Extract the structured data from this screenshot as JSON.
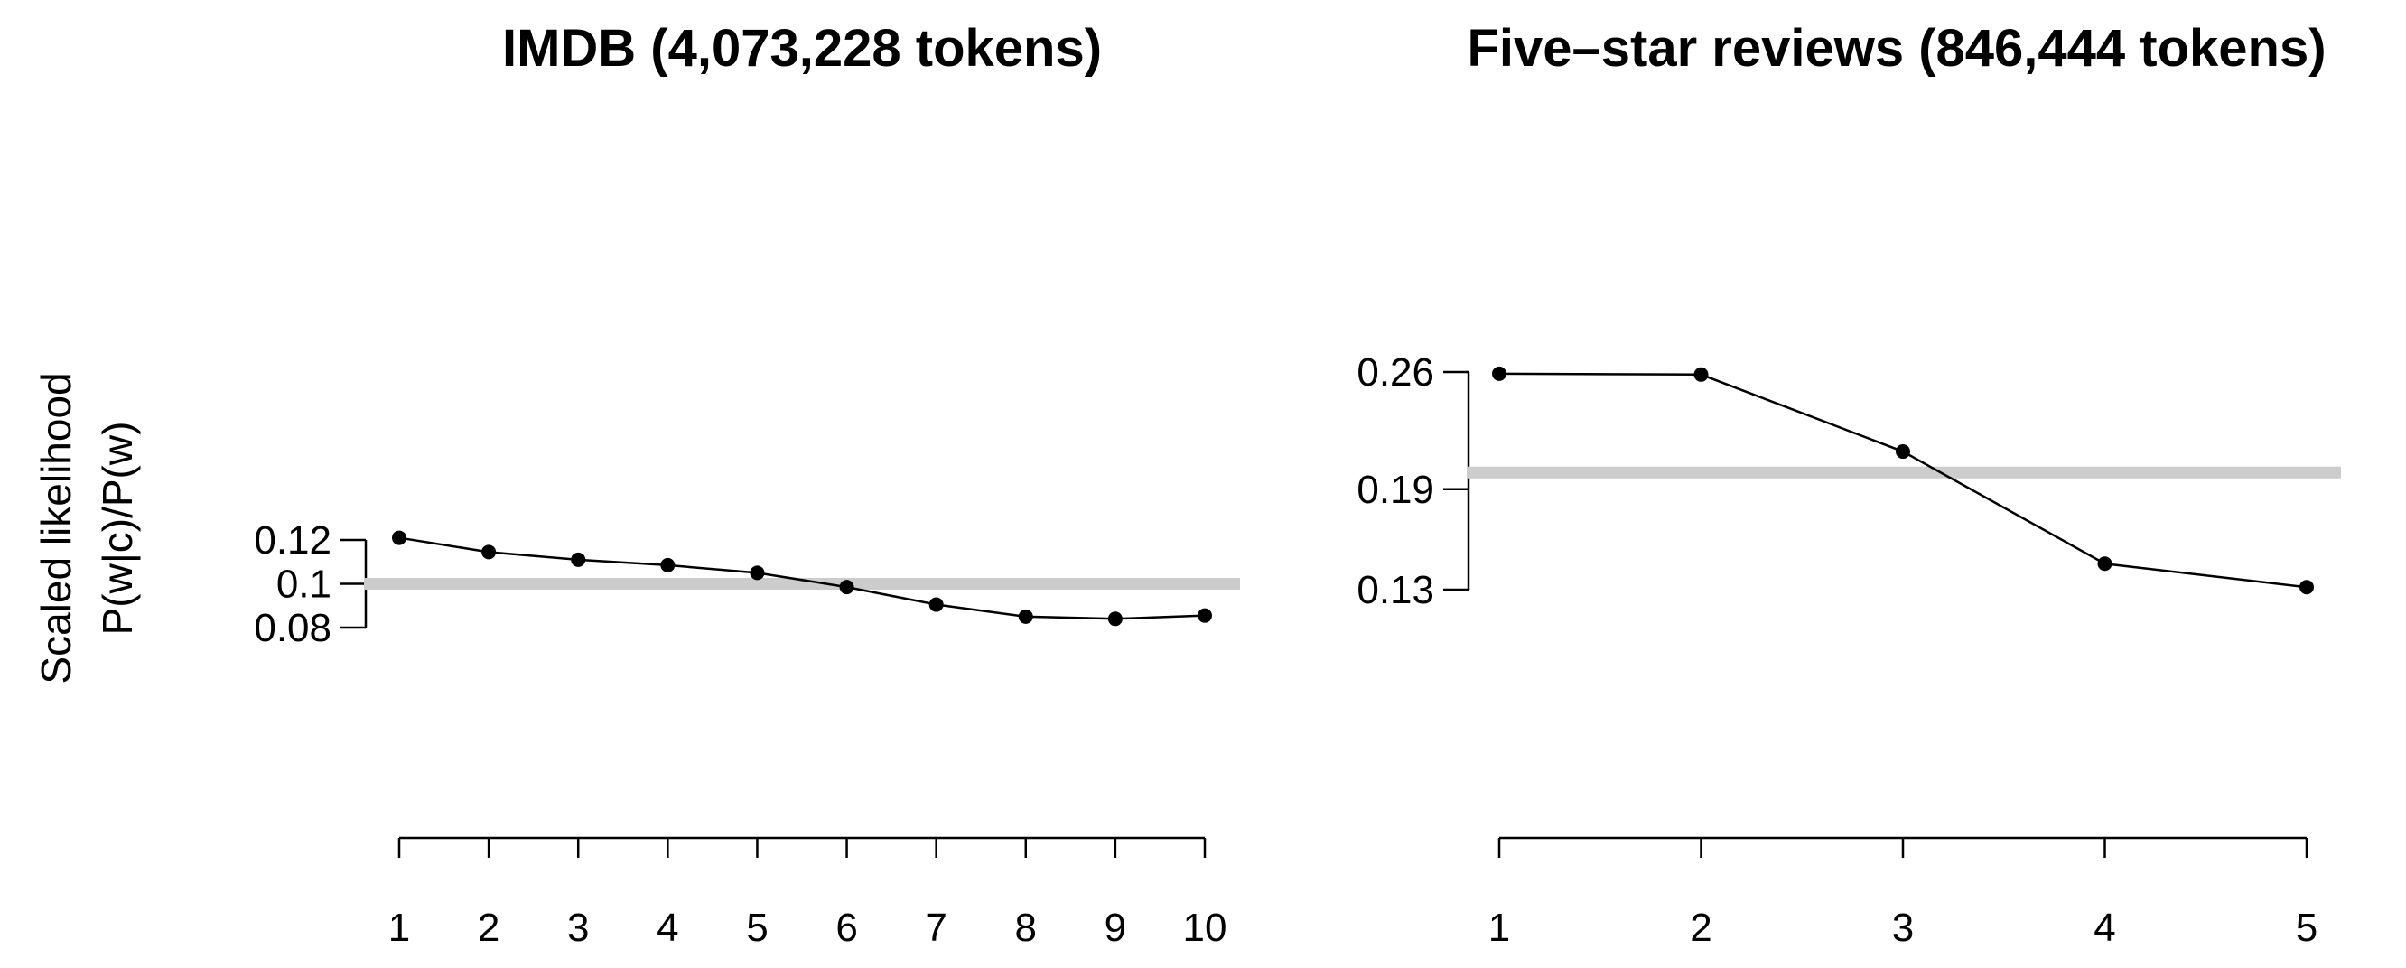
{
  "figure": {
    "ylabel": [
      "Scaled likelihood",
      "P(w|c)/P(w)"
    ],
    "baseline_color": "#cccccc",
    "line_color": "#000000"
  },
  "chart_data": [
    {
      "type": "line",
      "title": "IMDB (4,073,228 tokens)",
      "xlabel": "",
      "ylabel": "Scaled likelihood P(w|c)/P(w)",
      "x": [
        1,
        2,
        3,
        4,
        5,
        6,
        7,
        8,
        9,
        10
      ],
      "x_ticks": [
        "1",
        "2",
        "3",
        "4",
        "5",
        "6",
        "7",
        "8",
        "9",
        "10"
      ],
      "series": [
        {
          "values": [
            0.121,
            0.1145,
            0.111,
            0.1085,
            0.105,
            0.0985,
            0.0905,
            0.085,
            0.084,
            0.0855
          ]
        }
      ],
      "baseline": 0.1,
      "y_ticks": [
        0.08,
        0.1,
        0.12
      ],
      "y_tick_labels": [
        "0.08",
        "0.1",
        "0.12"
      ],
      "ylim": [
        0.0,
        0.2
      ],
      "grid": false,
      "legend": "none"
    },
    {
      "type": "line",
      "title": "Five–star reviews (846,444 tokens)",
      "xlabel": "",
      "ylabel": "",
      "x": [
        1,
        2,
        3,
        4,
        5
      ],
      "x_ticks": [
        "1",
        "2",
        "3",
        "4",
        "5"
      ],
      "series": [
        {
          "values": [
            0.259,
            0.2585,
            0.2125,
            0.1455,
            0.1315
          ]
        }
      ],
      "baseline": 0.2,
      "y_ticks": [
        0.13,
        0.19,
        0.26
      ],
      "y_tick_labels": [
        "0.13",
        "0.19",
        "0.26"
      ],
      "ylim": [
        0.0,
        0.4
      ],
      "grid": false,
      "legend": "none"
    }
  ]
}
